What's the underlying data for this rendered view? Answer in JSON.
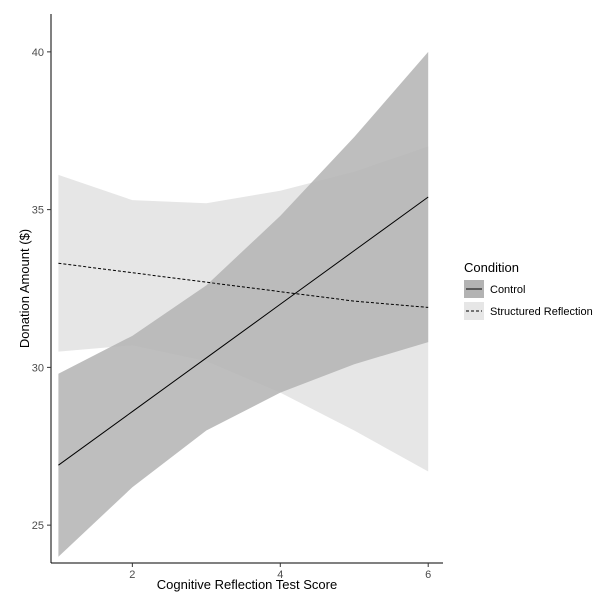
{
  "chart_data": {
    "type": "line",
    "xlabel": "Cognitive Reflection Test Score",
    "ylabel": "Donation Amount ($)",
    "xlim": [
      0.9,
      6.2
    ],
    "ylim": [
      23.8,
      41.2
    ],
    "xticks": [
      2,
      4,
      6
    ],
    "yticks": [
      25,
      30,
      35,
      40
    ],
    "grid": false,
    "legend": {
      "title": "Condition",
      "position": "right"
    },
    "series": [
      {
        "name": "Control",
        "linetype": "solid",
        "band_color": "#b3b3b3",
        "x": [
          1,
          2,
          3,
          4,
          5,
          6
        ],
        "y": [
          26.9,
          28.6,
          30.3,
          32.0,
          33.7,
          35.4
        ],
        "lower": [
          24.0,
          26.2,
          28.0,
          29.2,
          30.1,
          30.8
        ],
        "upper": [
          29.8,
          31.0,
          32.6,
          34.8,
          37.3,
          40.0
        ]
      },
      {
        "name": "Structured Reflection",
        "linetype": "dashed",
        "band_color": "#e6e6e6",
        "x": [
          1,
          2,
          3,
          4,
          5,
          6
        ],
        "y": [
          33.3,
          33.0,
          32.7,
          32.4,
          32.1,
          31.9
        ],
        "lower": [
          30.5,
          30.7,
          30.2,
          29.2,
          28.0,
          26.7
        ],
        "upper": [
          36.1,
          35.3,
          35.2,
          35.6,
          36.2,
          37.0
        ]
      }
    ]
  }
}
